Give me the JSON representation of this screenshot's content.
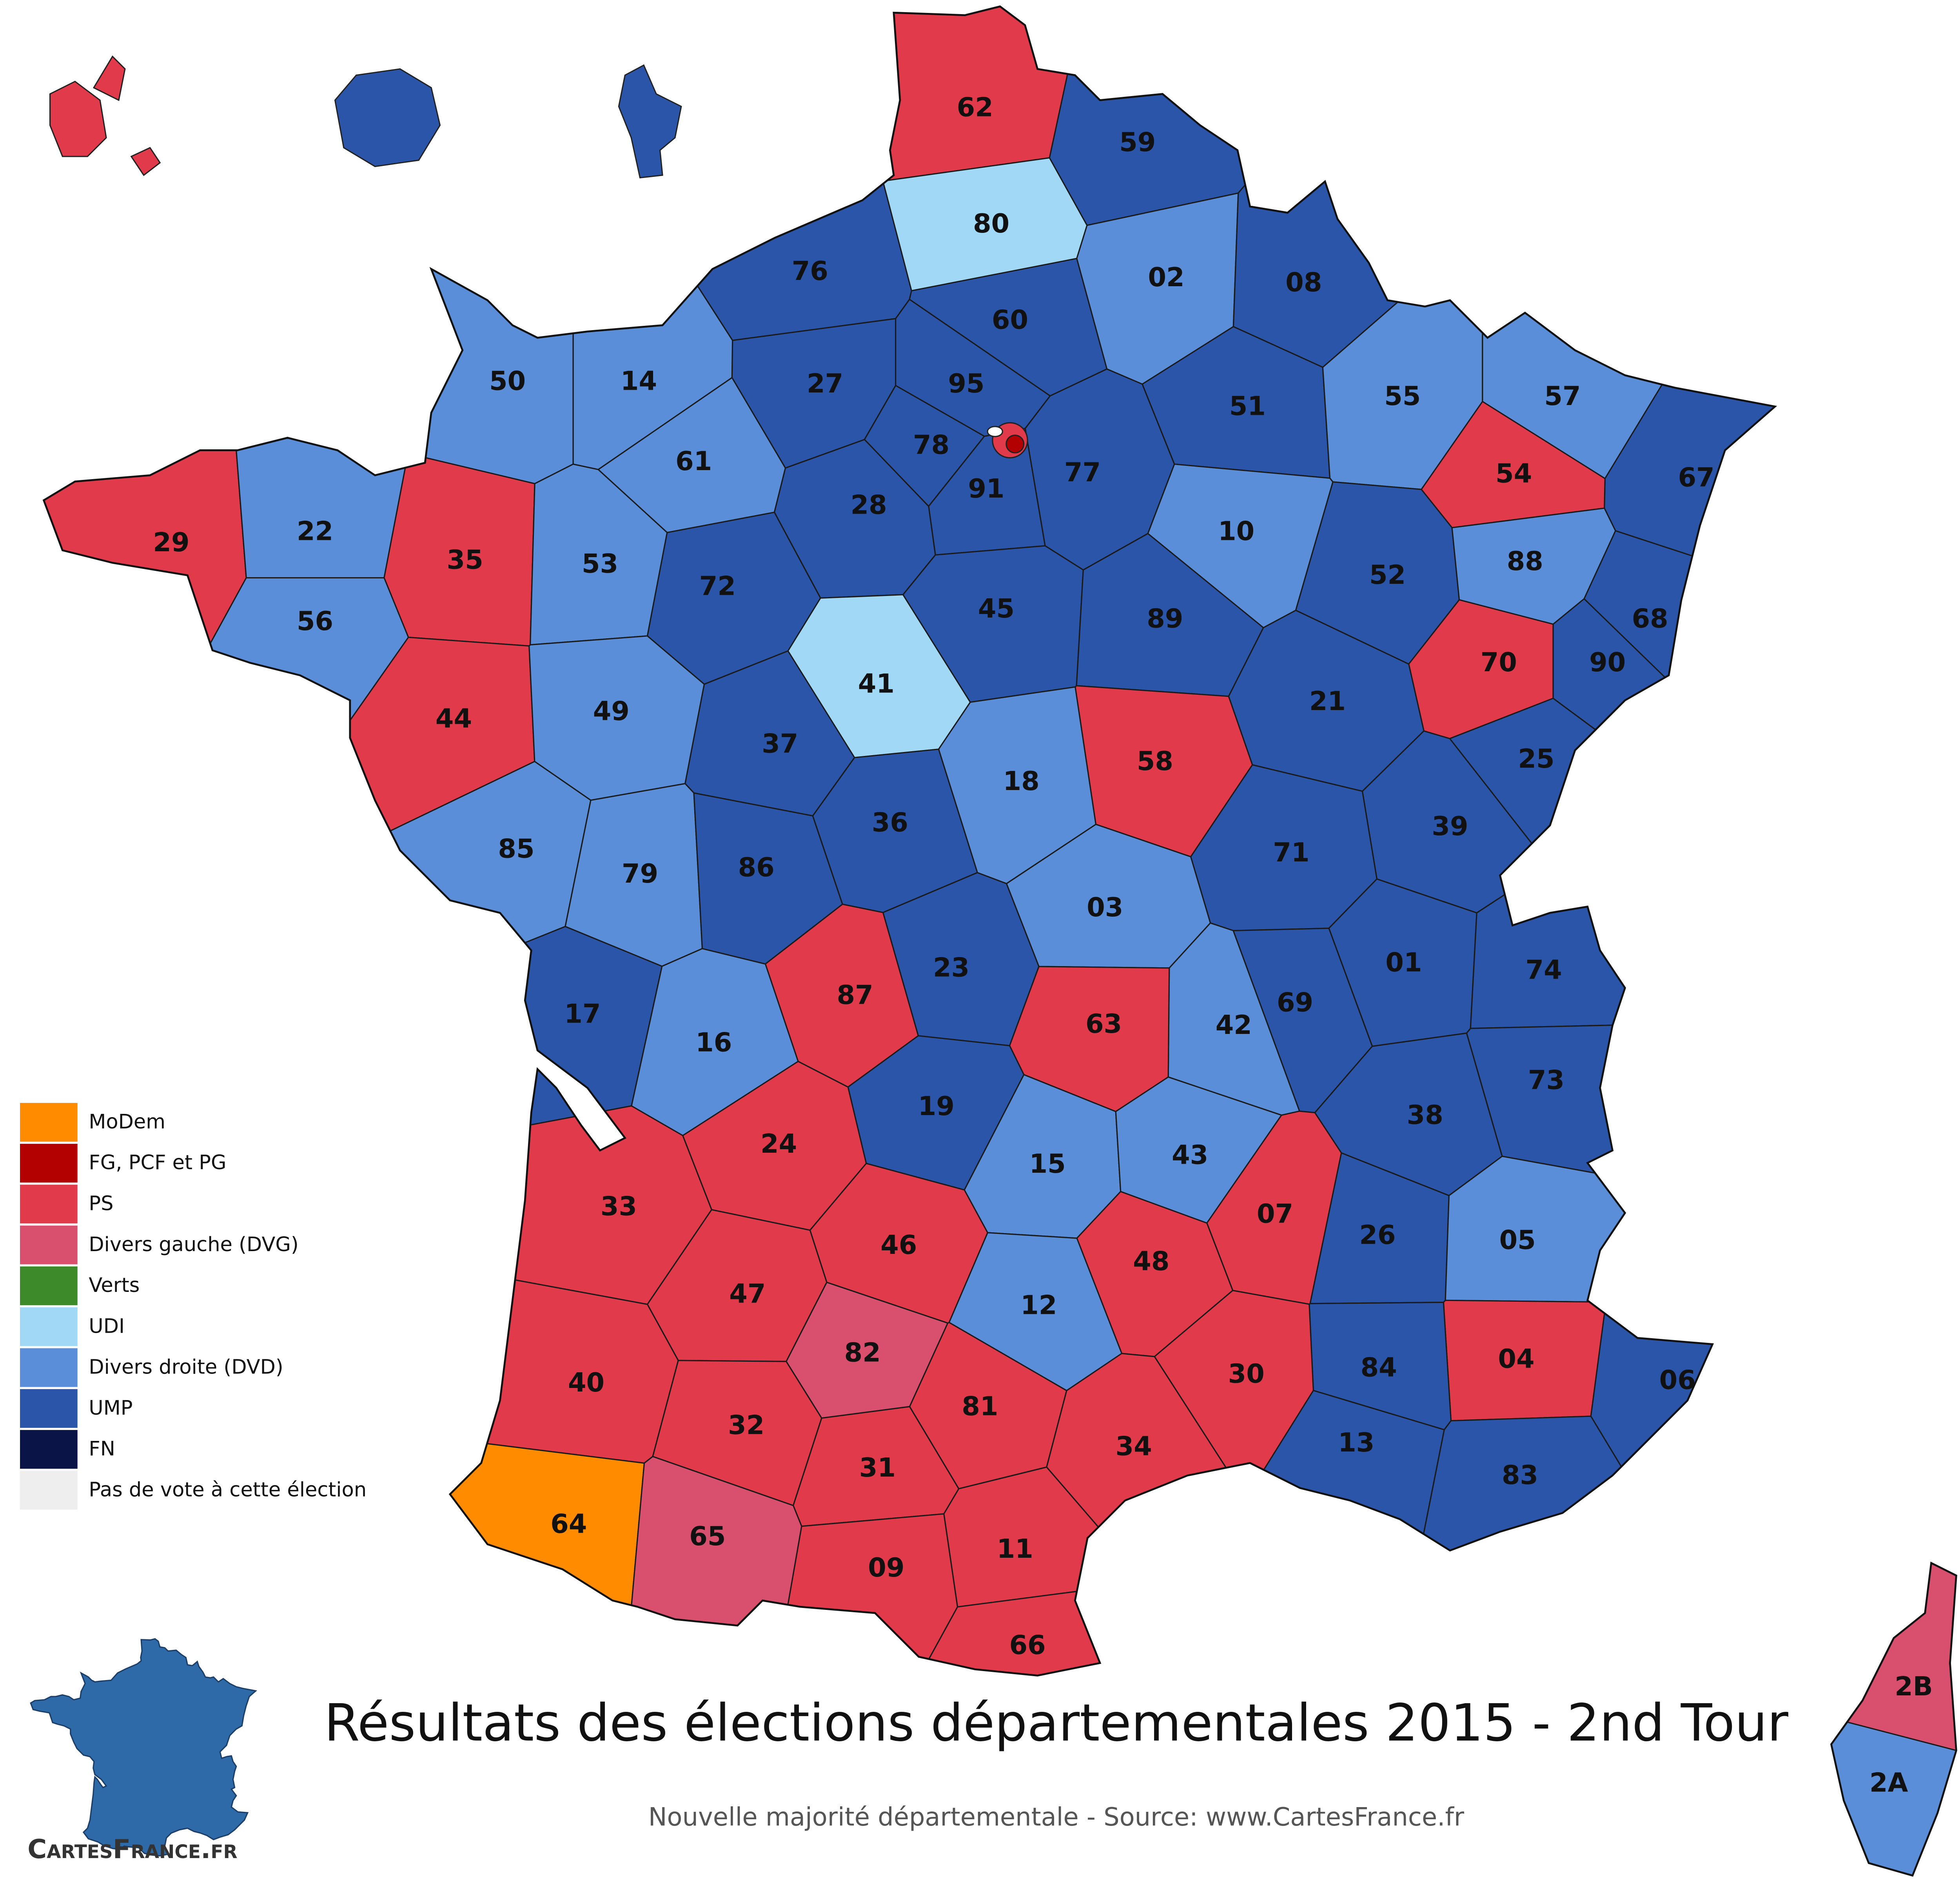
{
  "title": "Résultats des élections départementales 2015 - 2nd Tour",
  "subtitle": "Nouvelle majorité départementale - Source: www.CartesFrance.fr",
  "logo": "CartesFrance.fr",
  "legend": [
    {
      "label": "MoDem",
      "color": "#ff8c00"
    },
    {
      "label": "FG, PCF et PG",
      "color": "#b30000"
    },
    {
      "label": "PS",
      "color": "#e03a4b"
    },
    {
      "label": "Divers gauche (DVG)",
      "color": "#d9506e"
    },
    {
      "label": "Verts",
      "color": "#3c8a2a"
    },
    {
      "label": "UDI",
      "color": "#a0d8f5"
    },
    {
      "label": "Divers droite (DVD)",
      "color": "#5b8ed8"
    },
    {
      "label": "UMP",
      "color": "#2b55a8"
    },
    {
      "label": "FN",
      "color": "#0a1447"
    },
    {
      "label": "Pas de vote à cette élection",
      "color": "#eeeeee"
    }
  ],
  "departments": [
    {
      "code": "62",
      "color": "#e03a4b"
    },
    {
      "code": "59",
      "color": "#2b55a8"
    },
    {
      "code": "80",
      "color": "#a0d8f5"
    },
    {
      "code": "02",
      "color": "#5b8ed8"
    },
    {
      "code": "08",
      "color": "#2b55a8"
    },
    {
      "code": "76",
      "color": "#2b55a8"
    },
    {
      "code": "60",
      "color": "#2b55a8"
    },
    {
      "code": "27",
      "color": "#2b55a8"
    },
    {
      "code": "95",
      "color": "#2b55a8"
    },
    {
      "code": "14",
      "color": "#5b8ed8"
    },
    {
      "code": "50",
      "color": "#5b8ed8"
    },
    {
      "code": "51",
      "color": "#2b55a8"
    },
    {
      "code": "55",
      "color": "#5b8ed8"
    },
    {
      "code": "57",
      "color": "#5b8ed8"
    },
    {
      "code": "67",
      "color": "#2b55a8"
    },
    {
      "code": "54",
      "color": "#e03a4b"
    },
    {
      "code": "61",
      "color": "#5b8ed8"
    },
    {
      "code": "78",
      "color": "#2b55a8"
    },
    {
      "code": "91",
      "color": "#2b55a8"
    },
    {
      "code": "77",
      "color": "#2b55a8"
    },
    {
      "code": "28",
      "color": "#2b55a8"
    },
    {
      "code": "10",
      "color": "#5b8ed8"
    },
    {
      "code": "52",
      "color": "#2b55a8"
    },
    {
      "code": "88",
      "color": "#5b8ed8"
    },
    {
      "code": "68",
      "color": "#2b55a8"
    },
    {
      "code": "90",
      "color": "#2b55a8"
    },
    {
      "code": "29",
      "color": "#e03a4b"
    },
    {
      "code": "22",
      "color": "#5b8ed8"
    },
    {
      "code": "35",
      "color": "#e03a4b"
    },
    {
      "code": "53",
      "color": "#5b8ed8"
    },
    {
      "code": "72",
      "color": "#2b55a8"
    },
    {
      "code": "45",
      "color": "#2b55a8"
    },
    {
      "code": "89",
      "color": "#2b55a8"
    },
    {
      "code": "70",
      "color": "#e03a4b"
    },
    {
      "code": "56",
      "color": "#5b8ed8"
    },
    {
      "code": "44",
      "color": "#e03a4b"
    },
    {
      "code": "49",
      "color": "#5b8ed8"
    },
    {
      "code": "41",
      "color": "#a0d8f5"
    },
    {
      "code": "21",
      "color": "#2b55a8"
    },
    {
      "code": "37",
      "color": "#2b55a8"
    },
    {
      "code": "18",
      "color": "#5b8ed8"
    },
    {
      "code": "58",
      "color": "#e03a4b"
    },
    {
      "code": "25",
      "color": "#2b55a8"
    },
    {
      "code": "39",
      "color": "#2b55a8"
    },
    {
      "code": "85",
      "color": "#5b8ed8"
    },
    {
      "code": "79",
      "color": "#5b8ed8"
    },
    {
      "code": "86",
      "color": "#2b55a8"
    },
    {
      "code": "36",
      "color": "#2b55a8"
    },
    {
      "code": "71",
      "color": "#2b55a8"
    },
    {
      "code": "03",
      "color": "#5b8ed8"
    },
    {
      "code": "23",
      "color": "#2b55a8"
    },
    {
      "code": "87",
      "color": "#e03a4b"
    },
    {
      "code": "01",
      "color": "#2b55a8"
    },
    {
      "code": "74",
      "color": "#2b55a8"
    },
    {
      "code": "69",
      "color": "#2b55a8"
    },
    {
      "code": "42",
      "color": "#5b8ed8"
    },
    {
      "code": "63",
      "color": "#e03a4b"
    },
    {
      "code": "17",
      "color": "#2b55a8"
    },
    {
      "code": "16",
      "color": "#5b8ed8"
    },
    {
      "code": "19",
      "color": "#2b55a8"
    },
    {
      "code": "73",
      "color": "#2b55a8"
    },
    {
      "code": "38",
      "color": "#2b55a8"
    },
    {
      "code": "24",
      "color": "#e03a4b"
    },
    {
      "code": "33",
      "color": "#e03a4b"
    },
    {
      "code": "15",
      "color": "#5b8ed8"
    },
    {
      "code": "43",
      "color": "#5b8ed8"
    },
    {
      "code": "07",
      "color": "#e03a4b"
    },
    {
      "code": "26",
      "color": "#2b55a8"
    },
    {
      "code": "05",
      "color": "#5b8ed8"
    },
    {
      "code": "46",
      "color": "#e03a4b"
    },
    {
      "code": "47",
      "color": "#e03a4b"
    },
    {
      "code": "48",
      "color": "#e03a4b"
    },
    {
      "code": "12",
      "color": "#5b8ed8"
    },
    {
      "code": "82",
      "color": "#d9506e"
    },
    {
      "code": "04",
      "color": "#e03a4b"
    },
    {
      "code": "06",
      "color": "#2b55a8"
    },
    {
      "code": "84",
      "color": "#2b55a8"
    },
    {
      "code": "30",
      "color": "#e03a4b"
    },
    {
      "code": "40",
      "color": "#e03a4b"
    },
    {
      "code": "32",
      "color": "#e03a4b"
    },
    {
      "code": "81",
      "color": "#e03a4b"
    },
    {
      "code": "34",
      "color": "#e03a4b"
    },
    {
      "code": "13",
      "color": "#2b55a8"
    },
    {
      "code": "83",
      "color": "#2b55a8"
    },
    {
      "code": "31",
      "color": "#e03a4b"
    },
    {
      "code": "64",
      "color": "#ff8c00"
    },
    {
      "code": "65",
      "color": "#d9506e"
    },
    {
      "code": "11",
      "color": "#e03a4b"
    },
    {
      "code": "09",
      "color": "#e03a4b"
    },
    {
      "code": "66",
      "color": "#e03a4b"
    },
    {
      "code": "2B",
      "color": "#d9506e"
    },
    {
      "code": "2A",
      "color": "#5b8ed8"
    }
  ]
}
